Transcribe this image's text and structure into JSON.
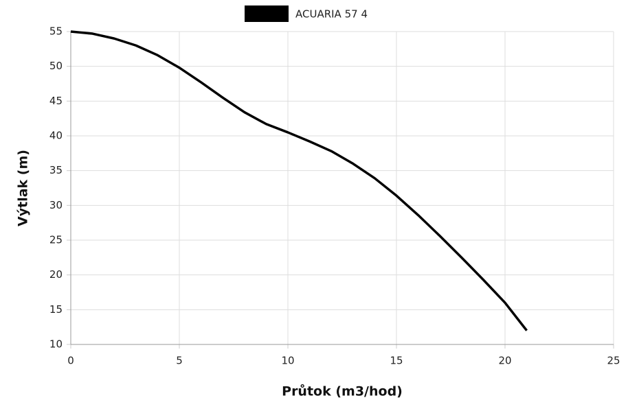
{
  "chart_data": {
    "type": "line",
    "x_label": "Průtok (m3/hod)",
    "y_label": "Výtlak (m)",
    "x": [
      0,
      1,
      2,
      3,
      4,
      5,
      6,
      7,
      8,
      9,
      10,
      11,
      12,
      13,
      14,
      15,
      16,
      17,
      18,
      19,
      20,
      21
    ],
    "series": [
      {
        "name": "ACUARIA 57 4",
        "color": "#000000",
        "values": [
          55,
          54.7,
          54,
          53,
          51.6,
          49.8,
          47.7,
          45.5,
          43.4,
          41.7,
          40.5,
          39.2,
          37.8,
          36,
          33.9,
          31.4,
          28.6,
          25.6,
          22.5,
          19.3,
          16,
          12
        ]
      }
    ],
    "xlim": [
      0,
      25
    ],
    "xticks": [
      0,
      5,
      10,
      15,
      20,
      25
    ],
    "ylim": [
      10,
      55
    ],
    "yticks": [
      10,
      15,
      20,
      25,
      30,
      35,
      40,
      45,
      50,
      55
    ],
    "grid": true,
    "legend": "top"
  }
}
